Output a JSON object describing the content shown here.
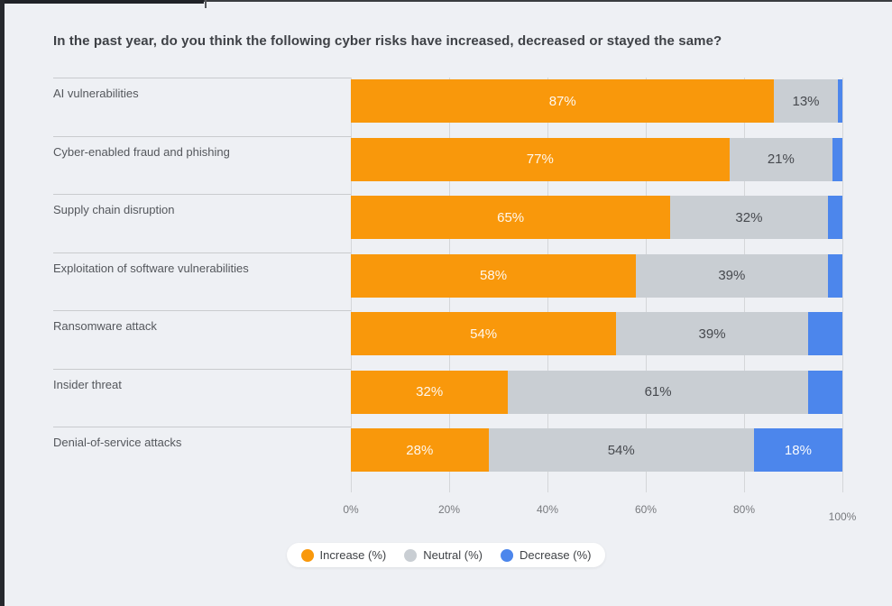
{
  "frame": {
    "background_color": "#EEF0F4",
    "edge_color": "#26282D"
  },
  "chart_data": {
    "type": "bar",
    "stacked": true,
    "orientation": "horizontal",
    "title": "In the past year, do you think the following cyber risks have increased, decreased or stayed the same?",
    "categories": [
      "AI vulnerabilities",
      "Cyber-enabled fraud and phishing",
      "Supply chain disruption",
      "Exploitation of software vulnerabilities",
      "Ransomware attack",
      "Insider threat",
      "Denial-of-service attacks"
    ],
    "series": [
      {
        "name": "Increase (%)",
        "color": "#F9980B",
        "values": [
          87,
          77,
          65,
          58,
          54,
          32,
          28
        ],
        "labels": [
          "87%",
          "77%",
          "65%",
          "58%",
          "54%",
          "32%",
          "28%"
        ]
      },
      {
        "name": "Neutral (%)",
        "color": "#C9CED3",
        "values": [
          13,
          21,
          32,
          39,
          39,
          61,
          54
        ],
        "labels": [
          "13%",
          "21%",
          "32%",
          "39%",
          "39%",
          "61%",
          "54%"
        ]
      },
      {
        "name": "Decrease (%)",
        "color": "#4C86EC",
        "values": [
          1,
          2,
          3,
          3,
          7,
          7,
          18
        ],
        "labels": [
          "",
          "",
          "",
          "",
          "",
          "",
          "18%"
        ]
      }
    ],
    "xticks": [
      "0%",
      "20%",
      "40%",
      "60%",
      "80%",
      "100%"
    ],
    "xlim": [
      0,
      100
    ],
    "grid": true,
    "legend_position": "bottom"
  }
}
